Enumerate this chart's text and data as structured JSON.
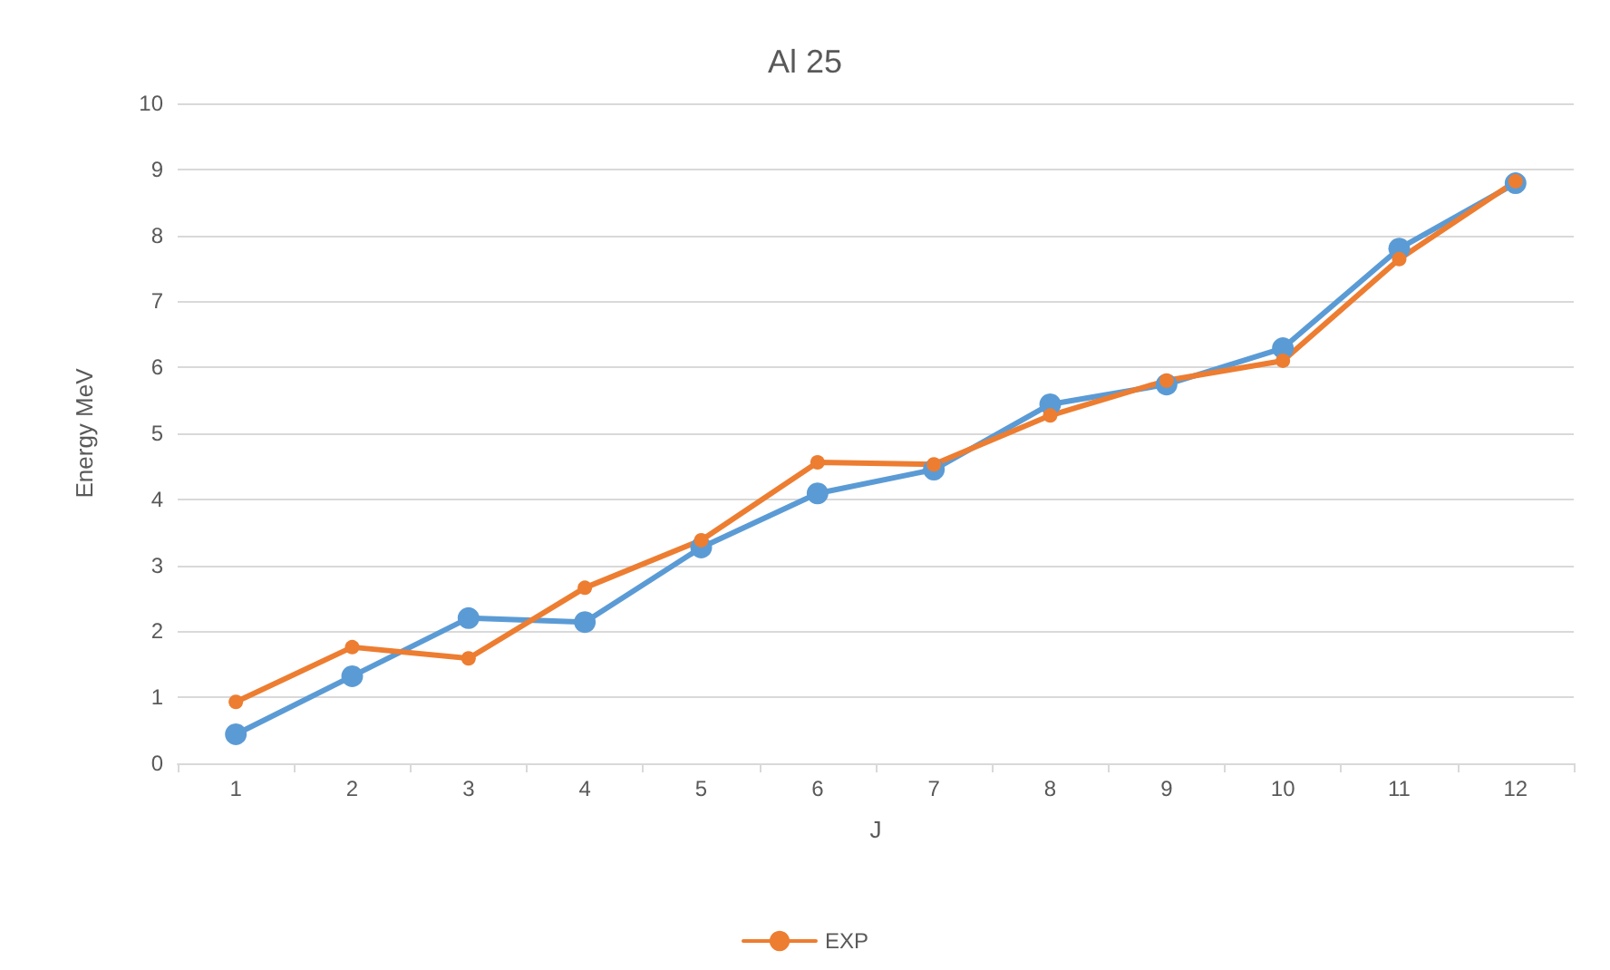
{
  "chart_data": {
    "type": "line",
    "title": "Al 25",
    "xlabel": "J",
    "ylabel": "Energy MeV",
    "categories": [
      "1",
      "2",
      "3",
      "4",
      "5",
      "6",
      "7",
      "8",
      "9",
      "10",
      "11",
      "12"
    ],
    "series": [
      {
        "color": "#5b9bd5",
        "values": [
          0.44,
          1.32,
          2.2,
          2.14,
          3.27,
          4.09,
          4.45,
          5.44,
          5.74,
          6.29,
          7.8,
          8.79
        ]
      },
      {
        "name": "EXP",
        "color": "#ed7d31",
        "values": [
          0.93,
          1.76,
          1.59,
          2.66,
          3.38,
          4.56,
          4.53,
          5.27,
          5.8,
          6.1,
          7.64,
          8.82
        ]
      }
    ],
    "ylim": [
      0,
      10
    ],
    "yticks": [
      0,
      1,
      2,
      3,
      4,
      5,
      6,
      7,
      8,
      9,
      10
    ],
    "grid": "y",
    "legend": "bottom",
    "marker": "circle",
    "line_style": "solid"
  }
}
